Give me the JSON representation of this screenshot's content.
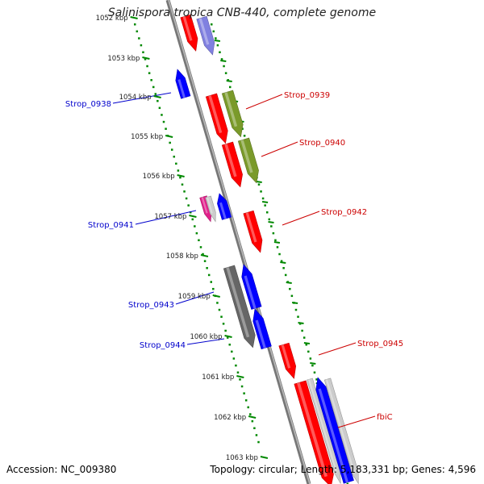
{
  "title": "Salinispora tropica CNB-440, complete genome",
  "footer": {
    "accession": "Accession: NC_009380",
    "summary": "Topology: circular; Length: 5,183,331 bp; Genes: 4,596"
  },
  "colors": {
    "forward_gene": "#ff0000",
    "reverse_gene": "#0000ff",
    "green_gene": "#7a9a2a",
    "grey_gene": "#666666",
    "purple_gene": "#8080e0",
    "magenta_gene": "#e0208a",
    "ruler_tick": "#008800",
    "backbone": "#888888",
    "left_label": "#0000cc",
    "right_label": "#cc0000"
  },
  "kbp_ticks": [
    "1052 kbp",
    "1053 kbp",
    "1054 kbp",
    "1055 kbp",
    "1056 kbp",
    "1057 kbp",
    "1058 kbp",
    "1059 kbp",
    "1060 kbp",
    "1061 kbp",
    "1062 kbp",
    "1063 kbp"
  ],
  "left_genes": [
    "Strop_0938",
    "Strop_0941",
    "Strop_0943",
    "Strop_0944"
  ],
  "right_genes": [
    "Strop_0939",
    "Strop_0940",
    "Strop_0942",
    "Strop_0945",
    "fbiC"
  ]
}
